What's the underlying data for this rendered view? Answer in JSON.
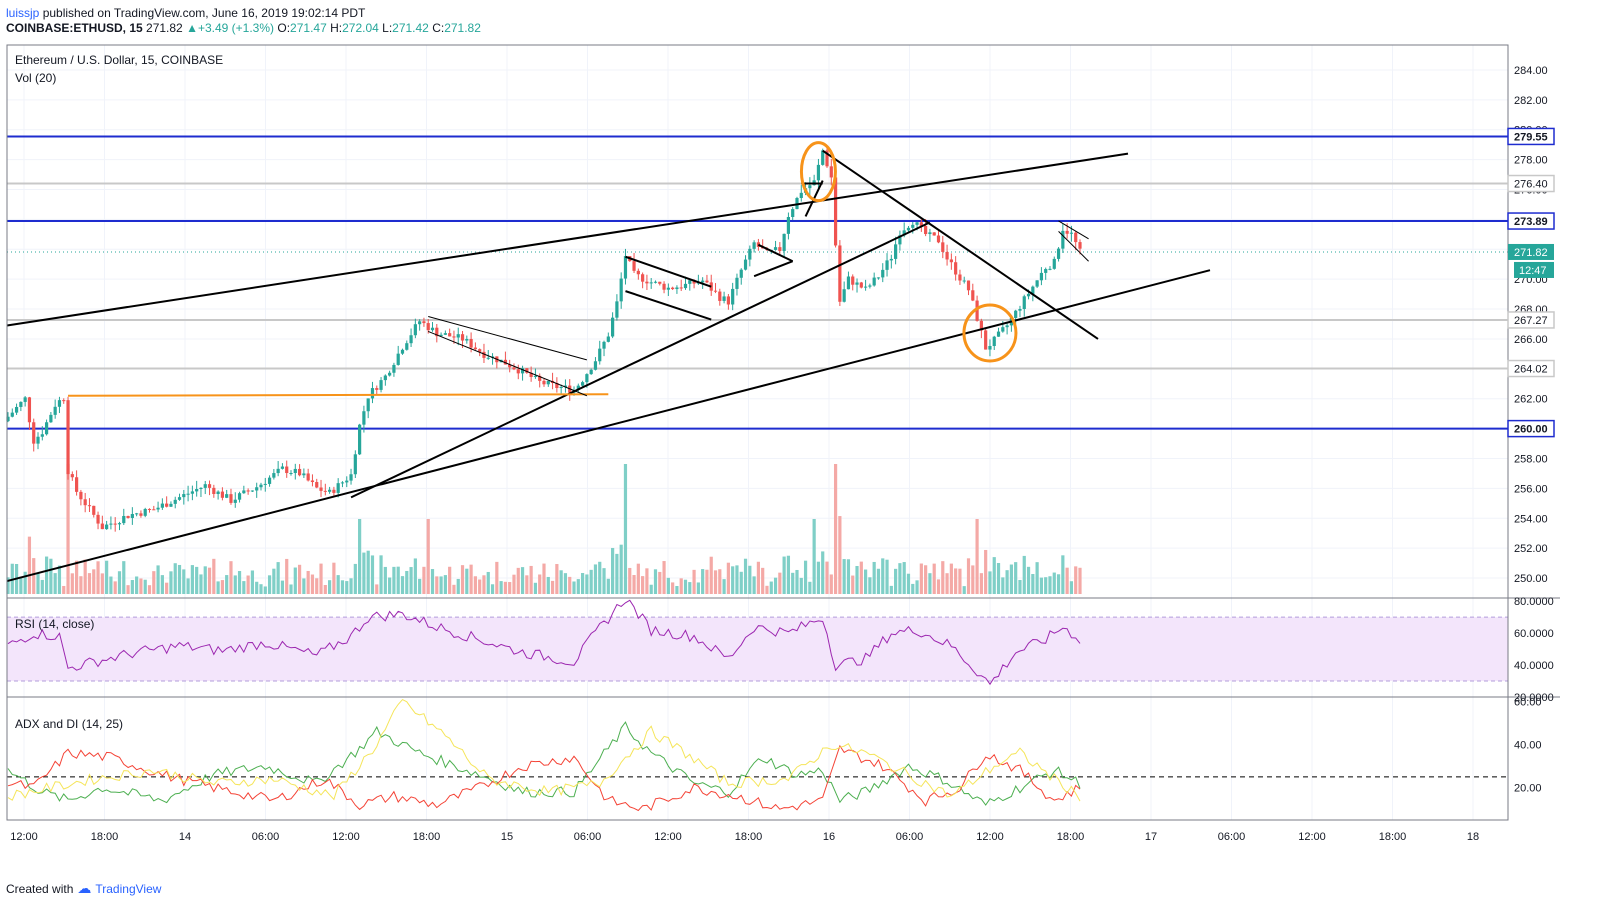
{
  "header": {
    "user": "luissjp",
    "published": "published on TradingView.com, June 16, 2019 19:02:14 PDT",
    "symbol": "COINBASE:ETHUSD, 15",
    "last": "271.82",
    "change": "+3.49 (+1.3%)",
    "o_label": "O:",
    "o": "271.47",
    "h_label": "H:",
    "h": "272.04",
    "l_label": "L:",
    "l": "271.42",
    "c_label": "C:",
    "c": "271.82"
  },
  "legend": {
    "title": "Ethereum / U.S. Dollar, 15, COINBASE",
    "vol": "Vol (20)",
    "rsi": "RSI (14, close)",
    "adx": "ADX and DI (14, 25)"
  },
  "footer": {
    "created": "Created with",
    "brand": "TradingView"
  },
  "colors": {
    "up": "#26a69a",
    "down": "#ef5350",
    "level": "#1e2ccf",
    "orange": "#f7931a",
    "rsi": "#9c27b0",
    "rsi_band": "#f3e5fb",
    "adx_green": "#4caf50",
    "adx_red": "#f44336",
    "adx_yellow": "#f5e55a"
  },
  "chart_data": [
    {
      "type": "candlestick",
      "title": "Ethereum / U.S. Dollar, 15, COINBASE",
      "ylim": [
        249,
        285
      ],
      "y_ticks": [
        "250.00",
        "252.00",
        "254.00",
        "256.00",
        "258.00",
        "260.00",
        "262.00",
        "264.00",
        "266.00",
        "268.00",
        "270.00",
        "272.00",
        "274.00",
        "276.00",
        "278.00",
        "280.00",
        "282.00",
        "284.00"
      ],
      "x_ticks": [
        "12:00",
        "18:00",
        "14",
        "06:00",
        "12:00",
        "18:00",
        "15",
        "06:00",
        "12:00",
        "18:00",
        "16",
        "06:00",
        "12:00",
        "18:00",
        "17",
        "06:00",
        "12:00",
        "18:00",
        "18"
      ],
      "anchors": [
        {
          "t": 0,
          "p": 260.8
        },
        {
          "t": 4,
          "p": 262.0
        },
        {
          "t": 6,
          "p": 259.2
        },
        {
          "t": 8,
          "p": 259.8
        },
        {
          "t": 11,
          "p": 261.6
        },
        {
          "t": 13,
          "p": 262.1
        },
        {
          "t": 14,
          "p": 257.2
        },
        {
          "t": 16,
          "p": 255.8
        },
        {
          "t": 19,
          "p": 254.6
        },
        {
          "t": 22,
          "p": 253.4
        },
        {
          "t": 28,
          "p": 254.2
        },
        {
          "t": 34,
          "p": 254.6
        },
        {
          "t": 40,
          "p": 255.4
        },
        {
          "t": 46,
          "p": 256.2
        },
        {
          "t": 52,
          "p": 255.2
        },
        {
          "t": 58,
          "p": 256.1
        },
        {
          "t": 64,
          "p": 257.3
        },
        {
          "t": 68,
          "p": 257.0
        },
        {
          "t": 72,
          "p": 256.0
        },
        {
          "t": 75,
          "p": 255.7
        },
        {
          "t": 80,
          "p": 256.9
        },
        {
          "t": 82,
          "p": 260.2
        },
        {
          "t": 84,
          "p": 262.2
        },
        {
          "t": 88,
          "p": 263.5
        },
        {
          "t": 92,
          "p": 265.5
        },
        {
          "t": 96,
          "p": 267.2
        },
        {
          "t": 100,
          "p": 266.4
        },
        {
          "t": 106,
          "p": 266.0
        },
        {
          "t": 111,
          "p": 265.0
        },
        {
          "t": 116,
          "p": 264.4
        },
        {
          "t": 120,
          "p": 263.8
        },
        {
          "t": 124,
          "p": 263.1
        },
        {
          "t": 128,
          "p": 262.8
        },
        {
          "t": 132,
          "p": 262.6
        },
        {
          "t": 134,
          "p": 263.3
        },
        {
          "t": 137,
          "p": 264.6
        },
        {
          "t": 140,
          "p": 266.3
        },
        {
          "t": 142,
          "p": 268.4
        },
        {
          "t": 144,
          "p": 271.6
        },
        {
          "t": 146,
          "p": 270.3
        },
        {
          "t": 150,
          "p": 269.8
        },
        {
          "t": 154,
          "p": 269.4
        },
        {
          "t": 158,
          "p": 269.6
        },
        {
          "t": 162,
          "p": 269.9
        },
        {
          "t": 166,
          "p": 268.8
        },
        {
          "t": 168,
          "p": 268.5
        },
        {
          "t": 171,
          "p": 270.6
        },
        {
          "t": 174,
          "p": 272.4
        },
        {
          "t": 177,
          "p": 271.7
        },
        {
          "t": 180,
          "p": 272.0
        },
        {
          "t": 182,
          "p": 274.3
        },
        {
          "t": 185,
          "p": 275.9
        },
        {
          "t": 188,
          "p": 276.5
        },
        {
          "t": 190,
          "p": 278.6
        },
        {
          "t": 192,
          "p": 276.8
        },
        {
          "t": 193,
          "p": 272.3
        },
        {
          "t": 194,
          "p": 268.5
        },
        {
          "t": 196,
          "p": 270.0
        },
        {
          "t": 200,
          "p": 269.3
        },
        {
          "t": 203,
          "p": 270.2
        },
        {
          "t": 206,
          "p": 271.5
        },
        {
          "t": 208,
          "p": 273.2
        },
        {
          "t": 211,
          "p": 273.9
        },
        {
          "t": 214,
          "p": 273.0
        },
        {
          "t": 217,
          "p": 272.6
        },
        {
          "t": 219,
          "p": 271.4
        },
        {
          "t": 222,
          "p": 270.1
        },
        {
          "t": 224,
          "p": 269.3
        },
        {
          "t": 226,
          "p": 267.4
        },
        {
          "t": 228,
          "p": 265.4
        },
        {
          "t": 230,
          "p": 265.9
        },
        {
          "t": 233,
          "p": 266.9
        },
        {
          "t": 236,
          "p": 268.2
        },
        {
          "t": 239,
          "p": 269.5
        },
        {
          "t": 242,
          "p": 270.8
        },
        {
          "t": 244,
          "p": 271.1
        },
        {
          "t": 246,
          "p": 273.4
        },
        {
          "t": 248,
          "p": 273.0
        },
        {
          "t": 250,
          "p": 271.8
        }
      ],
      "last_price": "271.82",
      "countdown": "12:47",
      "levels": [
        {
          "value": 279.55,
          "label": "279.55",
          "style": "blue"
        },
        {
          "value": 276.4,
          "label": "276.40",
          "style": "gray"
        },
        {
          "value": 273.89,
          "label": "273.89",
          "style": "blue"
        },
        {
          "value": 267.27,
          "label": "267.27",
          "style": "gray"
        },
        {
          "value": 264.02,
          "label": "264.02",
          "style": "gray"
        },
        {
          "value": 260.0,
          "label": "260.00",
          "style": "blue"
        }
      ]
    },
    {
      "type": "line",
      "title": "RSI (14, close)",
      "ylim": [
        20,
        82
      ],
      "y_ticks": [
        "20.0000",
        "40.0000",
        "60.0000",
        "80.0000"
      ],
      "band": [
        30,
        70
      ],
      "anchors": [
        {
          "t": 0,
          "v": 52
        },
        {
          "t": 6,
          "v": 60
        },
        {
          "t": 12,
          "v": 58
        },
        {
          "t": 14,
          "v": 38
        },
        {
          "t": 20,
          "v": 42
        },
        {
          "t": 30,
          "v": 48
        },
        {
          "t": 40,
          "v": 52
        },
        {
          "t": 50,
          "v": 49
        },
        {
          "t": 60,
          "v": 54
        },
        {
          "t": 72,
          "v": 46
        },
        {
          "t": 80,
          "v": 58
        },
        {
          "t": 84,
          "v": 70
        },
        {
          "t": 92,
          "v": 72
        },
        {
          "t": 100,
          "v": 64
        },
        {
          "t": 110,
          "v": 56
        },
        {
          "t": 120,
          "v": 48
        },
        {
          "t": 132,
          "v": 42
        },
        {
          "t": 137,
          "v": 60
        },
        {
          "t": 144,
          "v": 82
        },
        {
          "t": 150,
          "v": 62
        },
        {
          "t": 160,
          "v": 58
        },
        {
          "t": 168,
          "v": 44
        },
        {
          "t": 174,
          "v": 64
        },
        {
          "t": 182,
          "v": 60
        },
        {
          "t": 190,
          "v": 70
        },
        {
          "t": 193,
          "v": 40
        },
        {
          "t": 200,
          "v": 44
        },
        {
          "t": 206,
          "v": 60
        },
        {
          "t": 212,
          "v": 62
        },
        {
          "t": 220,
          "v": 52
        },
        {
          "t": 226,
          "v": 36
        },
        {
          "t": 229,
          "v": 28
        },
        {
          "t": 235,
          "v": 48
        },
        {
          "t": 242,
          "v": 56
        },
        {
          "t": 246,
          "v": 64
        },
        {
          "t": 250,
          "v": 56
        }
      ]
    },
    {
      "type": "line",
      "title": "ADX and DI (14, 25)",
      "ylim": [
        5,
        62
      ],
      "y_ticks": [
        "20.00",
        "40.00",
        "60.00"
      ],
      "threshold": 25,
      "series": [
        {
          "name": "",
          "color_key": "adx_green",
          "anchors": [
            {
              "t": 0,
              "v": 28
            },
            {
              "t": 8,
              "v": 18
            },
            {
              "t": 14,
              "v": 14
            },
            {
              "t": 22,
              "v": 20
            },
            {
              "t": 36,
              "v": 14
            },
            {
              "t": 48,
              "v": 26
            },
            {
              "t": 60,
              "v": 30
            },
            {
              "t": 72,
              "v": 22
            },
            {
              "t": 82,
              "v": 38
            },
            {
              "t": 86,
              "v": 46
            },
            {
              "t": 96,
              "v": 36
            },
            {
              "t": 110,
              "v": 26
            },
            {
              "t": 120,
              "v": 18
            },
            {
              "t": 132,
              "v": 18
            },
            {
              "t": 140,
              "v": 38
            },
            {
              "t": 144,
              "v": 48
            },
            {
              "t": 150,
              "v": 36
            },
            {
              "t": 160,
              "v": 22
            },
            {
              "t": 168,
              "v": 18
            },
            {
              "t": 176,
              "v": 34
            },
            {
              "t": 184,
              "v": 26
            },
            {
              "t": 190,
              "v": 28
            },
            {
              "t": 194,
              "v": 14
            },
            {
              "t": 200,
              "v": 18
            },
            {
              "t": 210,
              "v": 30
            },
            {
              "t": 218,
              "v": 24
            },
            {
              "t": 228,
              "v": 12
            },
            {
              "t": 236,
              "v": 20
            },
            {
              "t": 244,
              "v": 28
            },
            {
              "t": 250,
              "v": 22
            }
          ]
        },
        {
          "name": "",
          "color_key": "adx_red",
          "anchors": [
            {
              "t": 0,
              "v": 22
            },
            {
              "t": 6,
              "v": 20
            },
            {
              "t": 14,
              "v": 36
            },
            {
              "t": 24,
              "v": 34
            },
            {
              "t": 36,
              "v": 26
            },
            {
              "t": 48,
              "v": 20
            },
            {
              "t": 62,
              "v": 14
            },
            {
              "t": 74,
              "v": 24
            },
            {
              "t": 82,
              "v": 12
            },
            {
              "t": 90,
              "v": 16
            },
            {
              "t": 100,
              "v": 12
            },
            {
              "t": 110,
              "v": 20
            },
            {
              "t": 120,
              "v": 30
            },
            {
              "t": 132,
              "v": 34
            },
            {
              "t": 140,
              "v": 14
            },
            {
              "t": 148,
              "v": 10
            },
            {
              "t": 160,
              "v": 20
            },
            {
              "t": 170,
              "v": 16
            },
            {
              "t": 180,
              "v": 10
            },
            {
              "t": 190,
              "v": 14
            },
            {
              "t": 194,
              "v": 38
            },
            {
              "t": 204,
              "v": 30
            },
            {
              "t": 214,
              "v": 14
            },
            {
              "t": 222,
              "v": 20
            },
            {
              "t": 228,
              "v": 36
            },
            {
              "t": 236,
              "v": 28
            },
            {
              "t": 244,
              "v": 14
            },
            {
              "t": 250,
              "v": 20
            }
          ]
        },
        {
          "name": "",
          "color_key": "adx_yellow",
          "anchors": [
            {
              "t": 0,
              "v": 16
            },
            {
              "t": 10,
              "v": 20
            },
            {
              "t": 20,
              "v": 24
            },
            {
              "t": 34,
              "v": 28
            },
            {
              "t": 48,
              "v": 22
            },
            {
              "t": 62,
              "v": 24
            },
            {
              "t": 76,
              "v": 16
            },
            {
              "t": 86,
              "v": 40
            },
            {
              "t": 92,
              "v": 60
            },
            {
              "t": 102,
              "v": 44
            },
            {
              "t": 112,
              "v": 24
            },
            {
              "t": 126,
              "v": 18
            },
            {
              "t": 138,
              "v": 22
            },
            {
              "t": 150,
              "v": 46
            },
            {
              "t": 158,
              "v": 36
            },
            {
              "t": 168,
              "v": 22
            },
            {
              "t": 182,
              "v": 24
            },
            {
              "t": 192,
              "v": 40
            },
            {
              "t": 200,
              "v": 36
            },
            {
              "t": 210,
              "v": 26
            },
            {
              "t": 220,
              "v": 16
            },
            {
              "t": 230,
              "v": 30
            },
            {
              "t": 236,
              "v": 36
            },
            {
              "t": 244,
              "v": 24
            },
            {
              "t": 250,
              "v": 16
            }
          ]
        }
      ]
    }
  ]
}
